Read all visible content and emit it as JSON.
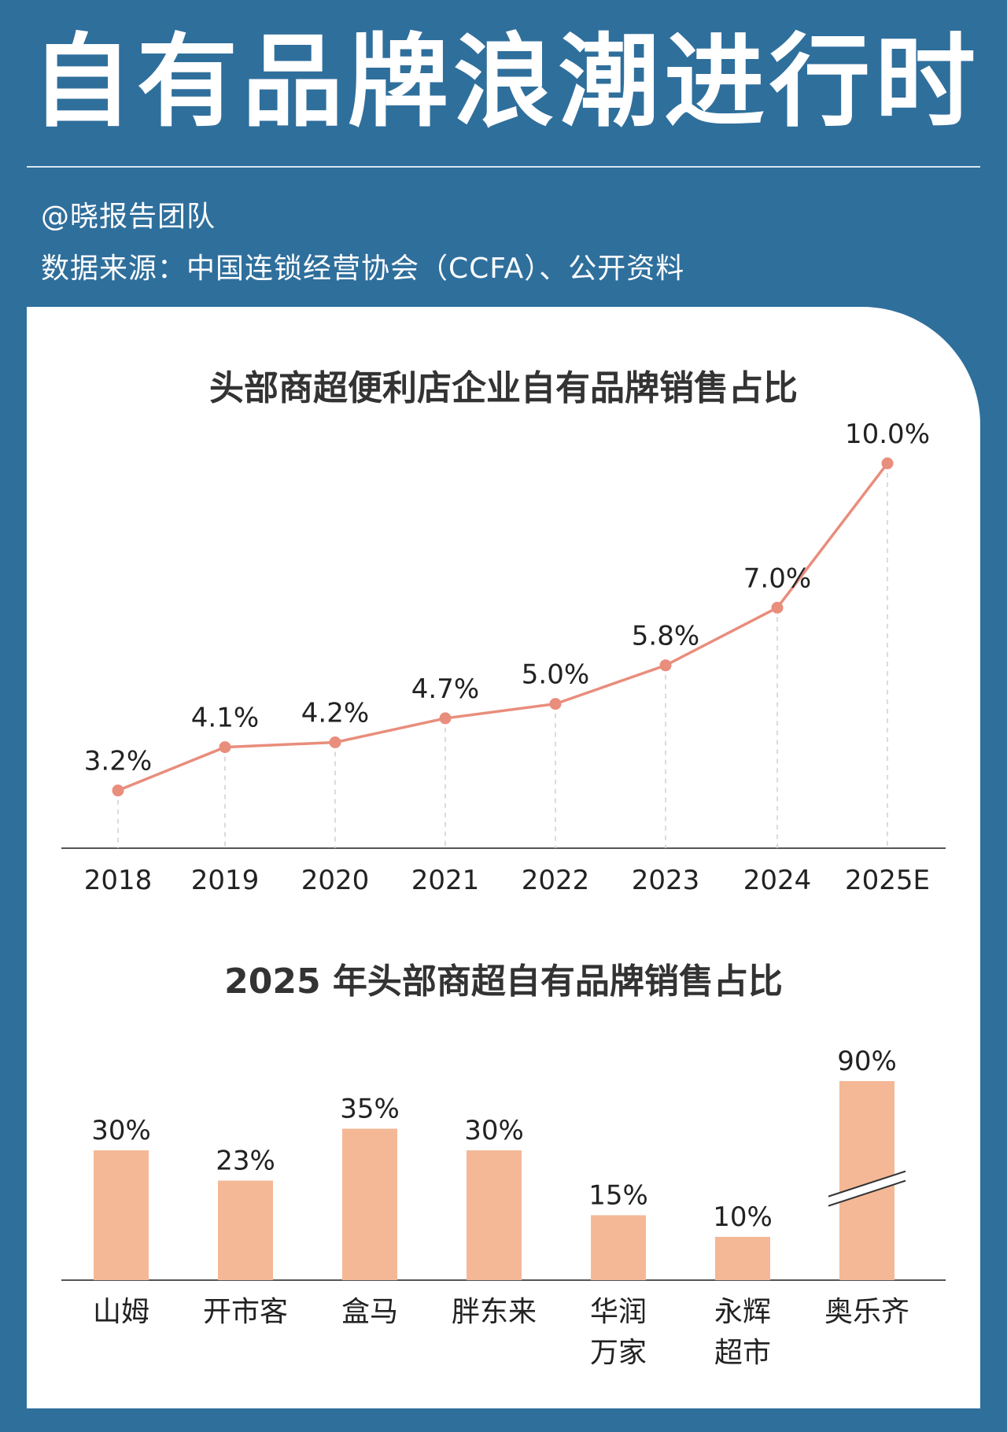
{
  "header": {
    "title": "自有品牌浪潮进行时",
    "author": "@晓报告团队",
    "source": "数据来源：中国连锁经营协会（CCFA）、公开资料"
  },
  "colors": {
    "background": "#2f6f9c",
    "line": "#e98d7c",
    "bar": "#f4b896",
    "text": "#222222"
  },
  "chart_data": [
    {
      "type": "line",
      "title": "头部商超便利店企业自有品牌销售占比",
      "categories": [
        "2018",
        "2019",
        "2020",
        "2021",
        "2022",
        "2023",
        "2024",
        "2025E"
      ],
      "values": [
        3.2,
        4.1,
        4.2,
        4.7,
        5.0,
        5.8,
        7.0,
        10.0
      ],
      "labels": [
        "3.2%",
        "4.1%",
        "4.2%",
        "4.7%",
        "5.0%",
        "5.8%",
        "7.0%",
        "10.0%"
      ],
      "ylim": [
        2,
        10.8
      ],
      "grid": false,
      "legend": "none"
    },
    {
      "type": "bar",
      "title": "2025 年头部商超自有品牌销售占比",
      "categories": [
        [
          "山姆"
        ],
        [
          "开市客"
        ],
        [
          "盒马"
        ],
        [
          "胖东来"
        ],
        [
          "华润",
          "万家"
        ],
        [
          "永辉",
          "超市"
        ],
        [
          "奥乐齐"
        ]
      ],
      "values": [
        30,
        23,
        35,
        30,
        15,
        10,
        90
      ],
      "labels": [
        "30%",
        "23%",
        "35%",
        "30%",
        "15%",
        "10%",
        "90%"
      ],
      "axis_break": [
        false,
        false,
        false,
        false,
        false,
        false,
        true
      ],
      "ylim": [
        0,
        100
      ],
      "grid": false,
      "legend": "none"
    }
  ]
}
